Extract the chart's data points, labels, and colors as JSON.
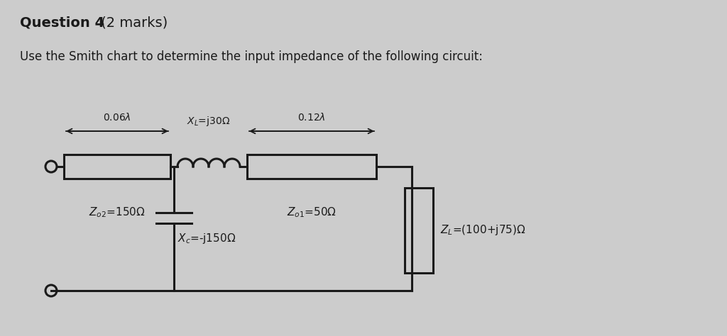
{
  "title_bold": "Question 4",
  "title_normal": " (2 marks)",
  "subtitle": "Use the Smith chart to determine the input impedance of the following circuit:",
  "bg_color": "#cccccc",
  "text_color": "#1a1a1a",
  "line_color": "#1a1a1a",
  "line_width": 2.2,
  "fig_w": 10.24,
  "fig_h": 4.74,
  "title_fontsize": 14,
  "subtitle_fontsize": 12,
  "label_fontsize": 11,
  "annot_fontsize": 10
}
